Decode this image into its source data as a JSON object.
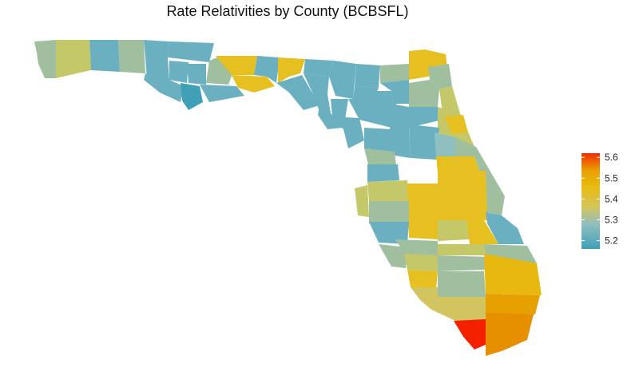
{
  "title": "Rate Relativities by County (BCBSFL)",
  "legend": {
    "position": "right",
    "ticks": [
      "5.6",
      "5.5",
      "5.4",
      "5.3",
      "5.2"
    ],
    "range": [
      5.16,
      5.62
    ],
    "color_stops": [
      {
        "value": 5.16,
        "color": "#3fa0b8"
      },
      {
        "value": 5.28,
        "color": "#8fbfbf"
      },
      {
        "value": 5.36,
        "color": "#d2c45e"
      },
      {
        "value": 5.46,
        "color": "#e8bb10"
      },
      {
        "value": 5.54,
        "color": "#e8a000"
      },
      {
        "value": 5.62,
        "color": "#f42a00"
      }
    ]
  },
  "colors": {
    "teal": "#6ab0c0",
    "dark_teal": "#3fa0b8",
    "sage": "#9fbf9f",
    "olive": "#c4c868",
    "gold": "#e6c020",
    "orange": "#e69a00",
    "red": "#f42000"
  }
}
